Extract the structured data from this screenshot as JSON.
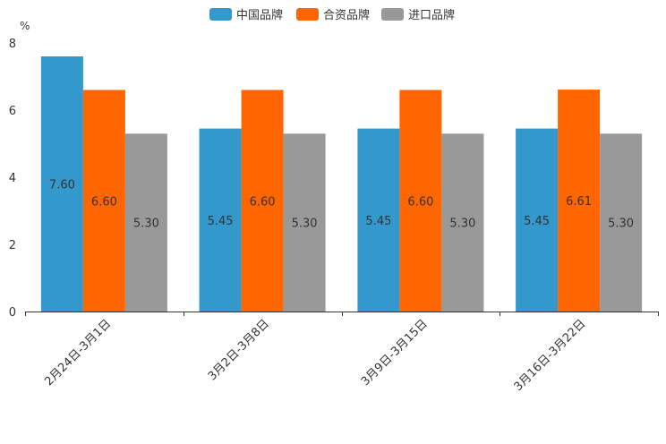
{
  "chart_data": {
    "type": "bar",
    "title": "",
    "ylabel": "%",
    "xlabel": "",
    "ylim": [
      0,
      8
    ],
    "yticks": [
      0,
      2,
      4,
      6,
      8
    ],
    "legend_position": "top-center",
    "categories": [
      "2月24日-3月1日",
      "3月2日-3月8日",
      "3月9日-3月15日",
      "3月16日-3月22日"
    ],
    "series": [
      {
        "name": "中国品牌",
        "color": "#3399CC",
        "values": [
          7.6,
          5.45,
          5.45,
          5.45
        ],
        "labels": [
          "7.60",
          "5.45",
          "5.45",
          "5.45"
        ]
      },
      {
        "name": "合资品牌",
        "color": "#FF6600",
        "values": [
          6.6,
          6.6,
          6.6,
          6.61
        ],
        "labels": [
          "6.60",
          "6.60",
          "6.60",
          "6.61"
        ]
      },
      {
        "name": "进口品牌",
        "color": "#999999",
        "values": [
          5.3,
          5.3,
          5.3,
          5.3
        ],
        "labels": [
          "5.30",
          "5.30",
          "5.30",
          "5.30"
        ]
      }
    ]
  }
}
